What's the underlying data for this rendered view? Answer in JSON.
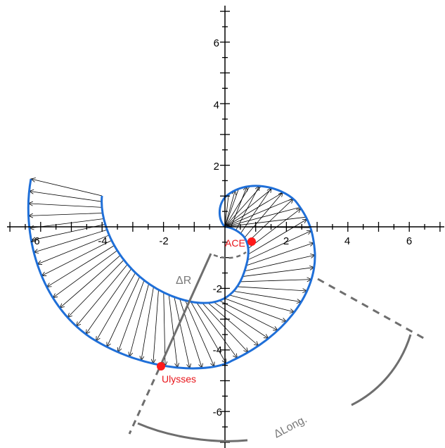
{
  "axes": {
    "x_ticks": [
      "-6",
      "-4",
      "-2",
      "2",
      "4",
      "6"
    ],
    "y_ticks": [
      "6",
      "4",
      "2",
      "-2",
      "-4",
      "-6"
    ]
  },
  "markers": {
    "ace": {
      "label": "ACE",
      "color": "#ff1a1a",
      "x": 0.9,
      "y": -0.48
    },
    "ulysses": {
      "label": "Ulysses",
      "color": "#ff1a1a",
      "x": -2.1,
      "y": -4.6
    }
  },
  "annotations": {
    "delta_r": "ΔR",
    "delta_long": "ΔLong."
  },
  "colors": {
    "spiral": "#1f6fd8",
    "vectors": "#000000",
    "guides": "#6e6e6e"
  }
}
